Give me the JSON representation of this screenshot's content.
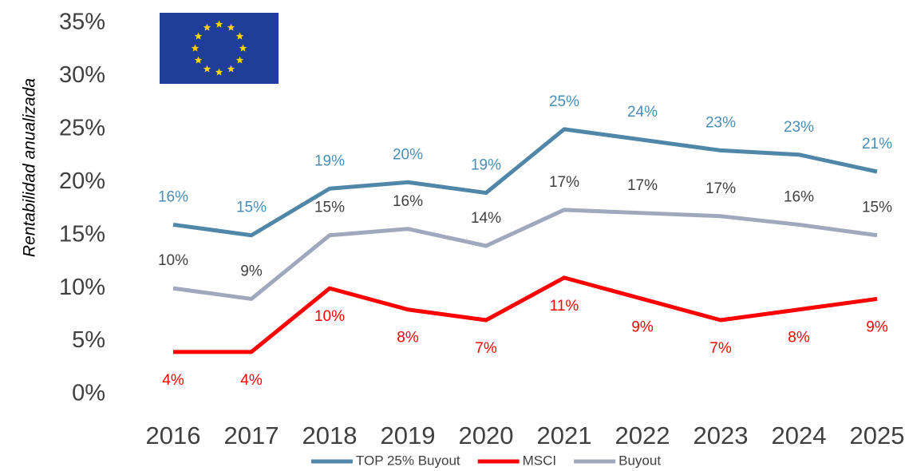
{
  "chart_data": {
    "type": "line",
    "y_label": "Rentabilidad anualizada",
    "categories": [
      "2016",
      "2017",
      "2018",
      "2019",
      "2020",
      "2021",
      "2022",
      "2023",
      "2024",
      "2025"
    ],
    "series": [
      {
        "name": "TOP 25% Buyout",
        "color": "#5087a8",
        "label_color": "#4a8db5",
        "values": [
          16,
          15,
          19.4,
          20,
          19,
          25,
          24,
          23,
          22.6,
          21
        ],
        "value_labels": [
          "16%",
          "15%",
          "19%",
          "20%",
          "19%",
          "25%",
          "24%",
          "23%",
          "23%",
          "21%"
        ],
        "label_position": "above"
      },
      {
        "name": "MSCI",
        "color": "#ff0000",
        "label_color": "#ff0000",
        "values": [
          4,
          4,
          10,
          8,
          7,
          11,
          9,
          7,
          8,
          9
        ],
        "value_labels": [
          "4%",
          "4%",
          "10%",
          "8%",
          "7%",
          "11%",
          "9%",
          "7%",
          "8%",
          "9%"
        ],
        "label_position": "below"
      },
      {
        "name": "Buyout",
        "color": "#a0a8bd",
        "label_color": "#404040",
        "values": [
          10,
          9,
          15,
          15.6,
          14,
          17.4,
          17.1,
          16.8,
          16,
          15
        ],
        "value_labels": [
          "10%",
          "9%",
          "15%",
          "16%",
          "14%",
          "17%",
          "17%",
          "17%",
          "16%",
          "15%"
        ],
        "label_position": "above"
      }
    ],
    "ylim": [
      0,
      35
    ],
    "yticks": [
      {
        "value": 0,
        "label": "0%"
      },
      {
        "value": 5,
        "label": "5%"
      },
      {
        "value": 10,
        "label": "10%"
      },
      {
        "value": 15,
        "label": "15%"
      },
      {
        "value": 20,
        "label": "20%"
      },
      {
        "value": 25,
        "label": "25%"
      },
      {
        "value": 30,
        "label": "30%"
      },
      {
        "value": 35,
        "label": "35%"
      }
    ],
    "grid": false,
    "legend": "bottom"
  }
}
